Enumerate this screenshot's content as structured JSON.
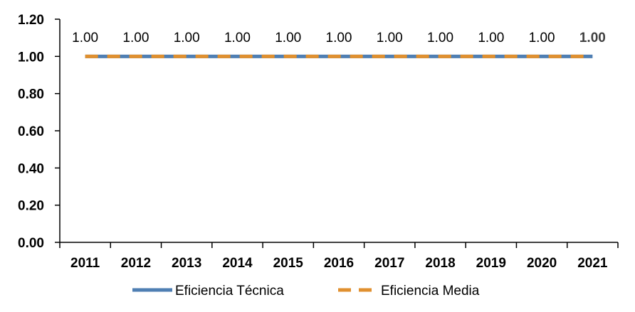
{
  "chart_data": {
    "type": "line",
    "categories": [
      "2011",
      "2012",
      "2013",
      "2014",
      "2015",
      "2016",
      "2017",
      "2018",
      "2019",
      "2020",
      "2021"
    ],
    "yticks": [
      "0.00",
      "0.20",
      "0.40",
      "0.60",
      "0.80",
      "1.00",
      "1.20"
    ],
    "ylim": [
      0,
      1.2
    ],
    "grid": false,
    "legend_position": "bottom",
    "series": [
      {
        "name": "Eficiencia Técnica",
        "values": [
          1,
          1,
          1,
          1,
          1,
          1,
          1,
          1,
          1,
          1,
          1
        ],
        "color": "#4f7fb3",
        "style": "solid"
      },
      {
        "name": "Eficiencia Media",
        "values": [
          1,
          1,
          1,
          1,
          1,
          1,
          1,
          1,
          1,
          1,
          1
        ],
        "color": "#e0902f",
        "style": "dashed"
      }
    ],
    "data_labels": [
      "1.00",
      "1.00",
      "1.00",
      "1.00",
      "1.00",
      "1.00",
      "1.00",
      "1.00",
      "1.00",
      "1.00",
      "1.00"
    ]
  }
}
